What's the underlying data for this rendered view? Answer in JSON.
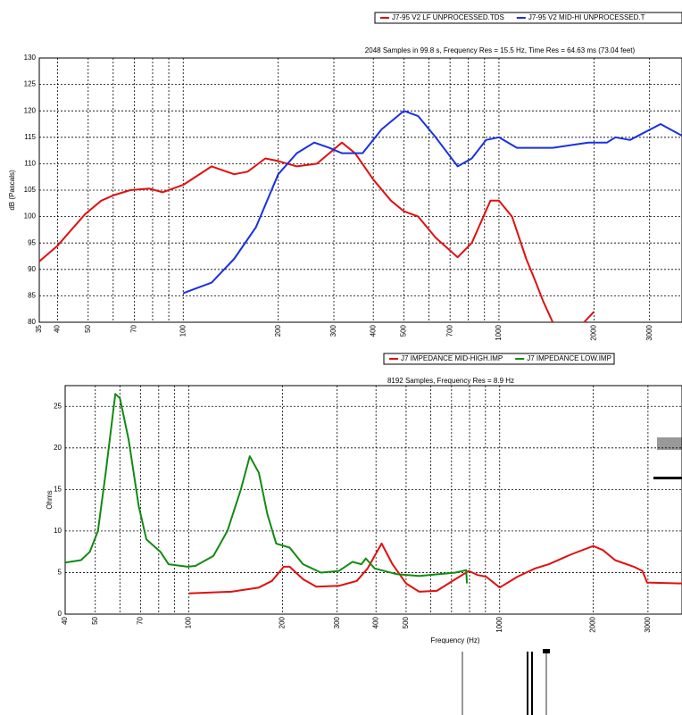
{
  "chart_data": [
    {
      "type": "line",
      "title": "2048 Samples in 99.8 s, Frequency Res = 15.5 Hz, Time Res = 64.63 ms (73.04 feet)",
      "y_label": "dB (Pascals)",
      "xscale": "log",
      "grid": true,
      "xlim": [
        35,
        3800
      ],
      "ylim": [
        80,
        130
      ],
      "xticks": [
        35,
        40,
        50,
        70,
        100,
        200,
        300,
        400,
        500,
        700,
        1000,
        2000,
        3000
      ],
      "xminor": [
        60,
        80,
        90,
        600,
        800,
        900
      ],
      "yticks": [
        80,
        85,
        90,
        95,
        100,
        105,
        110,
        115,
        120,
        125,
        130
      ],
      "series": [
        {
          "name": "J7-95 V2 LF UNPROCESSED.TDS",
          "color": "#e01010",
          "x": [
            35,
            40,
            45,
            49,
            55,
            60,
            68,
            78,
            86,
            100,
            123,
            145,
            160,
            182,
            200,
            229,
            265,
            318,
            350,
            400,
            455,
            500,
            555,
            630,
            740,
            820,
            940,
            1000,
            1100,
            1220,
            1300,
            1380,
            1480,
            1700,
            1860,
            2000
          ],
          "values": [
            91.5,
            94.5,
            98,
            100.5,
            103,
            104,
            105,
            105.3,
            104.6,
            106,
            109.5,
            108,
            108.5,
            111,
            110.5,
            109.5,
            110,
            114,
            112,
            107,
            103,
            101,
            100,
            96,
            92.3,
            95,
            103,
            103,
            100,
            92,
            88,
            84,
            80,
            null,
            80,
            82
          ]
        },
        {
          "name": "J7-95 V2 MID-HI UNPROCESSED.T",
          "color": "#1a30e0",
          "x": [
            100,
            123,
            145,
            170,
            200,
            229,
            260,
            290,
            318,
            370,
            425,
            500,
            555,
            630,
            740,
            820,
            910,
            1000,
            1140,
            1480,
            1920,
            2200,
            2340,
            2600,
            3250,
            3800
          ],
          "values": [
            85.5,
            87.5,
            92,
            98,
            108,
            112,
            114,
            113,
            112,
            112,
            116.5,
            120,
            119,
            115,
            109.5,
            111,
            114.5,
            115,
            113,
            113,
            114,
            114,
            115,
            114.5,
            117.5,
            115.3
          ]
        }
      ]
    },
    {
      "type": "line",
      "title": "8192 Samples, Frequency Res = 8.9 Hz",
      "y_label": "Ohms",
      "x_label": "Frequency (Hz)",
      "xscale": "log",
      "grid": true,
      "xlim": [
        40,
        3860
      ],
      "ylim": [
        0,
        27.5
      ],
      "xticks": [
        40,
        50,
        70,
        100,
        200,
        300,
        400,
        500,
        1000,
        2000,
        3000
      ],
      "xminor": [
        60,
        80,
        90,
        600,
        700,
        800,
        900
      ],
      "yticks": [
        0,
        5,
        10,
        15,
        20,
        25
      ],
      "series": [
        {
          "name": "J7 IMPEDANCE MID-HIGH.IMP",
          "color": "#e01010",
          "x": [
            100,
            137,
            168,
            185,
            202,
            211,
            233,
            257,
            304,
            347,
            376,
            417,
            452,
            500,
            551,
            628,
            720,
            795,
            850,
            905,
            1000,
            1140,
            1300,
            1440,
            1700,
            2000,
            2150,
            2350,
            2700,
            2880,
            2980,
            3860
          ],
          "values": [
            2.5,
            2.7,
            3.2,
            4,
            5.7,
            5.7,
            4.2,
            3.3,
            3.4,
            4,
            5.5,
            8.5,
            6,
            3.7,
            2.7,
            2.8,
            4.2,
            5.2,
            4.7,
            4.5,
            3.2,
            4.5,
            5.5,
            6,
            7.2,
            8.2,
            7.7,
            6.5,
            5.7,
            5.2,
            3.8,
            3.7
          ]
        },
        {
          "name": "J7 IMPEDANCE LOW.IMP",
          "color": "#138a13",
          "x": [
            40,
            45,
            48,
            51,
            54,
            58,
            60,
            64,
            69,
            73,
            81,
            86,
            99,
            105,
            120,
            133,
            147,
            157,
            168,
            179,
            191,
            211,
            233,
            266,
            304,
            336,
            359,
            371,
            396,
            467,
            551,
            720,
            780,
            785
          ],
          "values": [
            6.2,
            6.5,
            7.5,
            10,
            17,
            26.5,
            26,
            21,
            13,
            9,
            7.5,
            6,
            5.7,
            5.8,
            7,
            10,
            15,
            19,
            17,
            12,
            8.5,
            8,
            6,
            5,
            5.2,
            6.3,
            6,
            6.7,
            5.5,
            4.8,
            4.6,
            5,
            5.3,
            3.7
          ]
        }
      ]
    }
  ]
}
